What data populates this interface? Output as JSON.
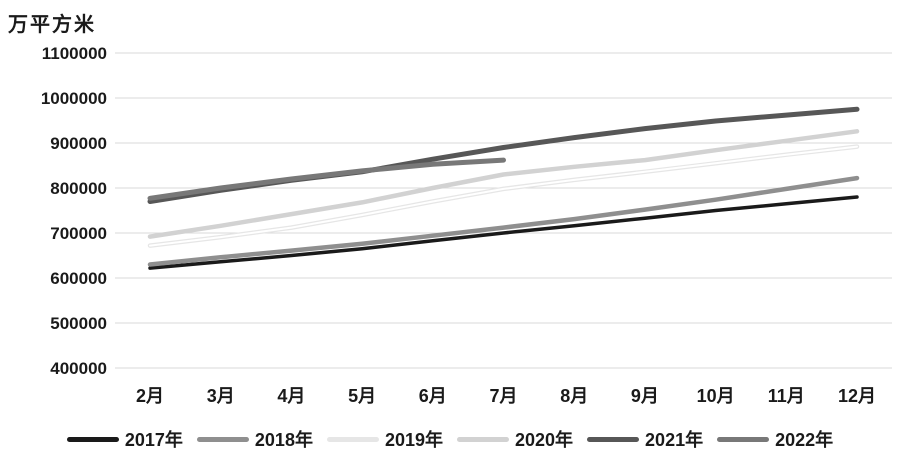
{
  "chart_data": {
    "type": "line",
    "title": "万平方米",
    "unit_label": "万平方米",
    "categories": [
      "2月",
      "3月",
      "4月",
      "5月",
      "6月",
      "7月",
      "8月",
      "9月",
      "10月",
      "11月",
      "12月"
    ],
    "ylim": [
      400000,
      1100000
    ],
    "ytick_step": 100000,
    "yticks": [
      400000,
      500000,
      600000,
      700000,
      800000,
      900000,
      1000000,
      1100000
    ],
    "grid": "horizontal",
    "legend_position": "bottom",
    "series": [
      {
        "name": "2017年",
        "color": "#1a1a1a",
        "width": 3.5,
        "outlined": false,
        "values": [
          622000,
          636000,
          650000,
          665000,
          683000,
          700000,
          716000,
          733000,
          750000,
          765000,
          780000
        ]
      },
      {
        "name": "2018年",
        "color": "#8f8f8f",
        "width": 4.5,
        "outlined": false,
        "values": [
          630000,
          646000,
          661000,
          676000,
          694000,
          712000,
          731000,
          752000,
          774000,
          798000,
          822000
        ]
      },
      {
        "name": "2019年",
        "color": "#e6e6e6",
        "width": 4.5,
        "outlined": true,
        "values": [
          672000,
          691000,
          712000,
          740000,
          770000,
          798000,
          818000,
          836000,
          855000,
          874000,
          892000
        ]
      },
      {
        "name": "2020年",
        "color": "#d2d2d2",
        "width": 4.5,
        "outlined": false,
        "values": [
          692000,
          716000,
          742000,
          768000,
          800000,
          830000,
          847000,
          862000,
          884000,
          905000,
          926000
        ]
      },
      {
        "name": "2021年",
        "color": "#575757",
        "width": 5,
        "outlined": false,
        "values": [
          770000,
          795000,
          817000,
          836000,
          864000,
          890000,
          912000,
          932000,
          949000,
          962000,
          975000
        ]
      },
      {
        "name": "2022年",
        "color": "#787878",
        "width": 5,
        "outlined": false,
        "values": [
          777000,
          800000,
          820000,
          838000,
          853000,
          862000
        ]
      }
    ]
  }
}
